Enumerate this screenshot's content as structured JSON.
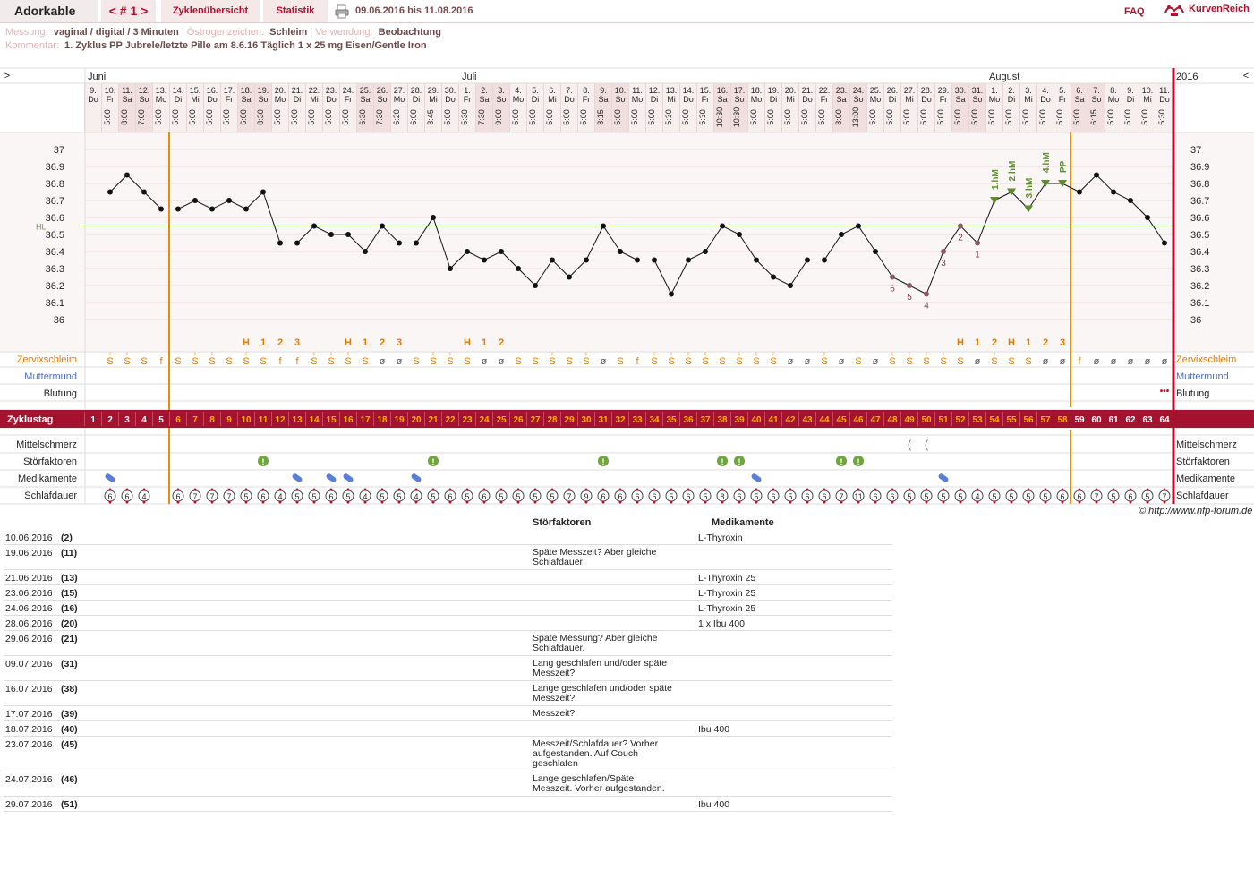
{
  "app": {
    "title": "Adorkable",
    "cycle_nav": "< # 1 >",
    "tab_cycles": "Zyklenübersicht",
    "tab_stats": "Statistik",
    "date_range": "09.06.2016 bis 11.08.2016",
    "faq": "FAQ",
    "brand": "KurvenReich"
  },
  "info": {
    "label_measure": "Messung:",
    "measure": "vaginal / digital / 3 Minuten",
    "label_estro": "Östrogenzeichen:",
    "estro": "Schleim",
    "label_use": "Verwendung:",
    "use": "Beobachtung",
    "label_comment": "Kommentar:",
    "comment": "1. Zyklus PP Jubrele/letzte Pille am 8.6.16 Täglich 1 x 25 mg Eisen/Gentle Iron"
  },
  "chart_data": {
    "type": "line",
    "title": "",
    "year": "2016",
    "months": [
      {
        "label": "Juni",
        "day": 1
      },
      {
        "label": "Juli",
        "day": 23
      },
      {
        "label": "August",
        "day": 54
      }
    ],
    "days": [
      "9.",
      "10.",
      "11.",
      "12.",
      "13.",
      "14.",
      "15.",
      "16.",
      "17.",
      "18.",
      "19.",
      "20.",
      "21.",
      "22.",
      "23.",
      "24.",
      "25.",
      "26.",
      "27.",
      "28.",
      "29.",
      "30.",
      "1.",
      "2.",
      "3.",
      "4.",
      "5.",
      "6.",
      "7.",
      "8.",
      "9.",
      "10.",
      "11.",
      "12.",
      "13.",
      "14.",
      "15.",
      "16.",
      "17.",
      "18.",
      "19.",
      "20.",
      "21.",
      "22.",
      "23.",
      "24.",
      "25.",
      "26.",
      "27.",
      "28.",
      "29.",
      "30.",
      "31.",
      "1.",
      "2.",
      "3.",
      "4.",
      "5.",
      "6.",
      "7.",
      "8.",
      "9.",
      "10.",
      "11."
    ],
    "weekdays": [
      "Do",
      "Fr",
      "Sa",
      "So",
      "Mo",
      "Di",
      "Mi",
      "Do",
      "Fr",
      "Sa",
      "So",
      "Mo",
      "Di",
      "Mi",
      "Do",
      "Fr",
      "Sa",
      "So",
      "Mo",
      "Di",
      "Mi",
      "Do",
      "Fr",
      "Sa",
      "So",
      "Mo",
      "Di",
      "Mi",
      "Do",
      "Fr",
      "Sa",
      "So",
      "Mo",
      "Di",
      "Mi",
      "Do",
      "Fr",
      "Sa",
      "So",
      "Mo",
      "Di",
      "Mi",
      "Do",
      "Fr",
      "Sa",
      "So",
      "Mo",
      "Di",
      "Mi",
      "Do",
      "Fr",
      "Sa",
      "So",
      "Mo",
      "Di",
      "Mi",
      "Do",
      "Fr",
      "Sa",
      "So",
      "Mo",
      "Di",
      "Mi",
      "Do"
    ],
    "times": [
      "",
      "5:00",
      "8:00",
      "7:00",
      "5:00",
      "5:00",
      "5:00",
      "5:00",
      "5:00",
      "6:00",
      "8:30",
      "5:00",
      "5:00",
      "5:00",
      "5:00",
      "5:00",
      "6:30",
      "7:30",
      "6:20",
      "6:00",
      "8:45",
      "5:00",
      "5:30",
      "7:30",
      "9:00",
      "5:00",
      "5:00",
      "5:00",
      "5:00",
      "5:00",
      "8:15",
      "5:00",
      "5:00",
      "5:00",
      "5:30",
      "5:00",
      "5:30",
      "10:30",
      "10:30",
      "5:00",
      "5:00",
      "5:00",
      "5:00",
      "5:00",
      "8:00",
      "13:00",
      "5:00",
      "5:00",
      "5:00",
      "5:00",
      "5:00",
      "5:00",
      "5:00",
      "5:00",
      "5:00",
      "5:00",
      "5:00",
      "5:00",
      "5:00",
      "6:15",
      "5:00",
      "5:00",
      "5:00",
      "5:30"
    ],
    "ylim": [
      36,
      37
    ],
    "yticks": [
      "37",
      "36.9",
      "36.8",
      "36.7",
      "36.6",
      "36.5",
      "36.4",
      "36.3",
      "36.2",
      "36.1",
      "36"
    ],
    "hl_label": "HL",
    "hl_value": 36.55,
    "temps": [
      null,
      36.75,
      36.85,
      36.75,
      36.65,
      36.65,
      36.7,
      36.65,
      36.7,
      36.65,
      36.75,
      36.45,
      36.45,
      36.55,
      36.5,
      36.5,
      36.4,
      36.55,
      36.45,
      36.45,
      36.6,
      36.3,
      36.4,
      36.35,
      36.4,
      36.3,
      36.2,
      36.35,
      36.25,
      36.35,
      36.55,
      36.4,
      36.35,
      36.35,
      36.15,
      36.35,
      36.4,
      36.55,
      36.5,
      36.35,
      36.25,
      36.2,
      36.35,
      36.35,
      36.5,
      36.55,
      36.4,
      36.25,
      36.2,
      36.15,
      36.4,
      36.55,
      36.45,
      36.7,
      36.75,
      36.65,
      36.8,
      36.8,
      36.75,
      36.85,
      36.75,
      36.7,
      36.6,
      36.45
    ],
    "point_labels": [
      {
        "day": 48,
        "text": "6"
      },
      {
        "day": 49,
        "text": "5"
      },
      {
        "day": 50,
        "text": "4"
      },
      {
        "day": 51,
        "text": "3"
      },
      {
        "day": 52,
        "text": "2"
      },
      {
        "day": 53,
        "text": "1"
      }
    ],
    "high_labels": [
      {
        "day": 54,
        "text": "1.hM"
      },
      {
        "day": 55,
        "text": "2.hM"
      },
      {
        "day": 56,
        "text": "3.hM"
      },
      {
        "day": 57,
        "text": "4.hM"
      },
      {
        "day": 58,
        "text": "PP"
      }
    ],
    "peak_markers": [
      {
        "day": 10,
        "text": "H"
      },
      {
        "day": 11,
        "text": "1"
      },
      {
        "day": 12,
        "text": "2"
      },
      {
        "day": 13,
        "text": "3"
      },
      {
        "day": 16,
        "text": "H"
      },
      {
        "day": 17,
        "text": "1"
      },
      {
        "day": 18,
        "text": "2"
      },
      {
        "day": 19,
        "text": "3"
      },
      {
        "day": 23,
        "text": "H"
      },
      {
        "day": 24,
        "text": "1"
      },
      {
        "day": 25,
        "text": "2"
      },
      {
        "day": 52,
        "text": "H"
      },
      {
        "day": 53,
        "text": "1"
      },
      {
        "day": 54,
        "text": "2"
      },
      {
        "day": 55,
        "text": "H"
      },
      {
        "day": 56,
        "text": "1"
      },
      {
        "day": 57,
        "text": "2"
      },
      {
        "day": 58,
        "text": "3"
      }
    ],
    "mucus": [
      "",
      "S+",
      "S+",
      "S",
      "f",
      "S",
      "S+",
      "S+",
      "S",
      "S+",
      "S",
      "f",
      "f",
      "S+",
      "S+",
      "S+",
      "S",
      "ø",
      "ø",
      "S",
      "S+",
      "S+",
      "S",
      "ø",
      "ø",
      "S",
      "S",
      "S+",
      "S",
      "S+",
      "ø",
      "S",
      "f",
      "S+",
      "S+",
      "S+",
      "S+",
      "S",
      "S+",
      "S+",
      "S+",
      "ø",
      "ø",
      "S+",
      "ø",
      "S",
      "ø",
      "S+",
      "S+",
      "S+",
      "S+",
      "S",
      "ø",
      "S+",
      "S",
      "S",
      "ø",
      "ø",
      "f",
      "ø",
      "ø",
      "ø",
      "ø",
      "ø"
    ],
    "bleeding": {
      "day": 64,
      "text": "•••"
    },
    "cycle_days": [
      "1",
      "2",
      "3",
      "4",
      "5",
      "6",
      "7",
      "8",
      "9",
      "10",
      "11",
      "12",
      "13",
      "14",
      "15",
      "16",
      "17",
      "18",
      "19",
      "20",
      "21",
      "22",
      "23",
      "24",
      "25",
      "26",
      "27",
      "28",
      "29",
      "30",
      "31",
      "32",
      "33",
      "34",
      "35",
      "36",
      "37",
      "38",
      "39",
      "40",
      "41",
      "42",
      "43",
      "44",
      "45",
      "46",
      "47",
      "48",
      "49",
      "50",
      "51",
      "52",
      "53",
      "54",
      "55",
      "56",
      "57",
      "58",
      "59",
      "60",
      "61",
      "62",
      "63",
      "64"
    ],
    "mittelschmerz": [
      49,
      50
    ],
    "stoerfaktoren": [
      11,
      21,
      31,
      38,
      39,
      45,
      46
    ],
    "medikamente": [
      2,
      13,
      15,
      16,
      20,
      40,
      51
    ],
    "sleep": [
      "",
      "6",
      "6",
      "4",
      "",
      "6",
      "7",
      "7",
      "7",
      "5",
      "6",
      "4",
      "5",
      "5",
      "6",
      "5",
      "4",
      "5",
      "5",
      "4",
      "5",
      "6",
      "5",
      "6",
      "5",
      "5",
      "5",
      "5",
      "7",
      "9",
      "6",
      "6",
      "6",
      "6",
      "5",
      "6",
      "5",
      "8",
      "6",
      "5",
      "6",
      "5",
      "6",
      "6",
      "7",
      "11",
      "6",
      "6",
      "5",
      "5",
      "5",
      "5",
      "4",
      "5",
      "5",
      "5",
      "5",
      "6",
      "6",
      "7",
      "5",
      "6",
      "5",
      "7"
    ],
    "row_labels": {
      "zervix": "Zervixschleim",
      "muttermund": "Muttermund",
      "blutung": "Blutung",
      "zyklustag": "Zyklustag",
      "mittelschmerz": "Mittelschmerz",
      "stoer": "Störfaktoren",
      "medi": "Medikamente",
      "schlaf": "Schlafdauer"
    },
    "colors": {
      "accent": "#b2102d",
      "orange": "#f08a00",
      "green": "#5e8c31",
      "hl": "#6e9a3a",
      "mucus": "#e07a00",
      "muttermund": "#4a6fc4",
      "point_label": "#7a3a4a",
      "header_bg": "#f7eeee",
      "chart_bg": "#fbf6f6",
      "medi": "#5b7fd6"
    }
  },
  "notes": {
    "header_stoer": "Störfaktoren",
    "header_medi": "Medikamente",
    "rows": [
      {
        "date": "10.06.2016",
        "cd": "(2)",
        "stoer": "",
        "medi": "L-Thyroxin"
      },
      {
        "date": "19.06.2016",
        "cd": "(11)",
        "stoer": "Späte Messzeit? Aber gleiche Schlafdauer",
        "medi": ""
      },
      {
        "date": "21.06.2016",
        "cd": "(13)",
        "stoer": "",
        "medi": "L-Thyroxin 25"
      },
      {
        "date": "23.06.2016",
        "cd": "(15)",
        "stoer": "",
        "medi": "L-Thyroxin 25"
      },
      {
        "date": "24.06.2016",
        "cd": "(16)",
        "stoer": "",
        "medi": "L-Thyroxin 25"
      },
      {
        "date": "28.06.2016",
        "cd": "(20)",
        "stoer": "",
        "medi": "1 x Ibu 400"
      },
      {
        "date": "29.06.2016",
        "cd": "(21)",
        "stoer": "Späte Messung? Aber gleiche Schlafdauer.",
        "medi": ""
      },
      {
        "date": "09.07.2016",
        "cd": "(31)",
        "stoer": "Lang geschlafen und/oder späte Messzeit?",
        "medi": ""
      },
      {
        "date": "16.07.2016",
        "cd": "(38)",
        "stoer": "Lange geschlafen und/oder späte Messzeit?",
        "medi": ""
      },
      {
        "date": "17.07.2016",
        "cd": "(39)",
        "stoer": "Messzeit?",
        "medi": ""
      },
      {
        "date": "18.07.2016",
        "cd": "(40)",
        "stoer": "",
        "medi": "Ibu 400"
      },
      {
        "date": "23.07.2016",
        "cd": "(45)",
        "stoer": "Messzeit/Schlafdauer? Vorher aufgestanden. Auf Couch geschlafen",
        "medi": ""
      },
      {
        "date": "24.07.2016",
        "cd": "(46)",
        "stoer": "Lange geschlafen/Späte Messzeit. Vorher aufgestanden.",
        "medi": ""
      },
      {
        "date": "29.07.2016",
        "cd": "(51)",
        "stoer": "",
        "medi": "Ibu 400"
      }
    ]
  },
  "copyright": "© http://www.nfp-forum.de"
}
